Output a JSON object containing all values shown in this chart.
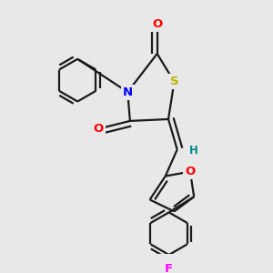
{
  "bg_color": "#e8e8e8",
  "line_color": "#1a1a1a",
  "atom_colors": {
    "N": "#0000ff",
    "O": "#ff0000",
    "S": "#b8b800",
    "F": "#ff00ff",
    "H": "#008888",
    "C": "#1a1a1a"
  },
  "line_width": 1.6,
  "font_size": 9.5,
  "figsize": [
    3.0,
    3.0
  ],
  "dpi": 100
}
